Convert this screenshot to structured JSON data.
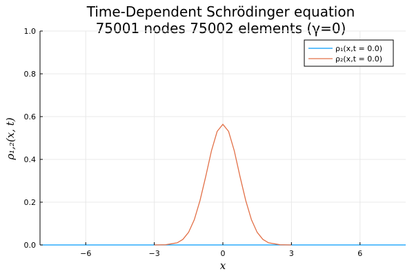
{
  "chart_data": {
    "type": "line",
    "title_line1": "Time-Dependent Schrödinger equation",
    "title_line2": "75001 nodes 75002 elements (γ=0)",
    "xlabel": "x",
    "ylabel": "ρ₁,₂(x, t)",
    "xlim": [
      -8,
      8
    ],
    "ylim": [
      0,
      1
    ],
    "xticks": [
      -6,
      -3,
      0,
      3,
      6
    ],
    "xtick_labels": [
      "−6",
      "−3",
      "0",
      "3",
      "6"
    ],
    "yticks": [
      0.0,
      0.2,
      0.4,
      0.6,
      0.8,
      1.0
    ],
    "ytick_labels": [
      "0.0",
      "0.2",
      "0.4",
      "0.6",
      "0.8",
      "1.0"
    ],
    "grid": true,
    "legend_position": "top-right",
    "series": [
      {
        "name": "ρ₁(x,t = 0.0)",
        "color": "#009af9",
        "x": [
          -8,
          -6,
          -4,
          -3,
          -2,
          -1,
          0,
          1,
          2,
          3,
          4,
          6,
          8
        ],
        "y": [
          0,
          0,
          0,
          0,
          0,
          0,
          0,
          0,
          0,
          0,
          0,
          0,
          0
        ]
      },
      {
        "name": "ρ₂(x,t = 0.0)",
        "color": "#e26f46",
        "x": [
          -3.0,
          -2.5,
          -2.0,
          -1.75,
          -1.5,
          -1.25,
          -1.0,
          -0.75,
          -0.5,
          -0.25,
          0.0,
          0.25,
          0.5,
          0.75,
          1.0,
          1.25,
          1.5,
          1.75,
          2.0,
          2.5,
          3.0
        ],
        "y": [
          0.0001,
          0.001,
          0.01,
          0.026,
          0.059,
          0.118,
          0.208,
          0.32,
          0.44,
          0.531,
          0.564,
          0.531,
          0.44,
          0.32,
          0.208,
          0.118,
          0.059,
          0.026,
          0.01,
          0.001,
          0.0001
        ]
      }
    ]
  }
}
